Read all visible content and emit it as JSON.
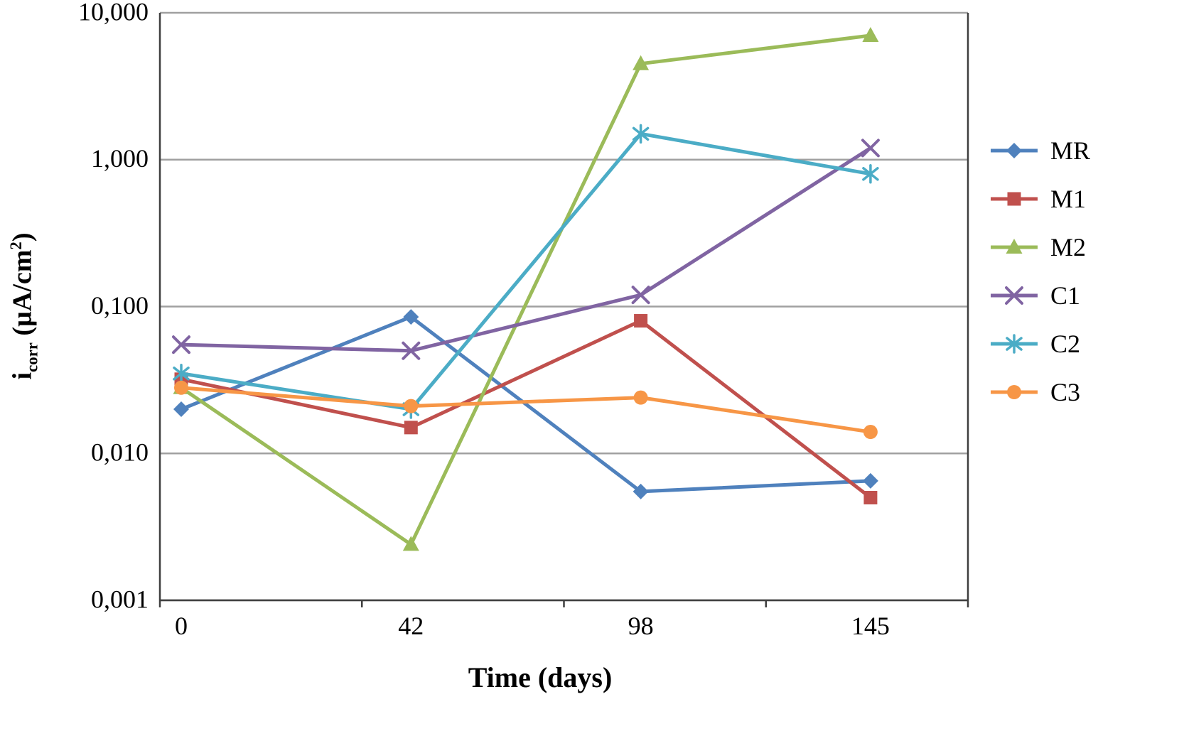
{
  "chart_data": {
    "type": "line",
    "title": "",
    "xlabel": "Time (days)",
    "ylabel": "icorr (µA/cm2)",
    "x_categories": [
      "0",
      "42",
      "98",
      "145"
    ],
    "x_values": [
      0,
      42,
      98,
      145
    ],
    "y_scale": "log",
    "ylim": [
      0.001,
      10
    ],
    "y_ticks": [
      {
        "value": 0.001,
        "label": "0,001"
      },
      {
        "value": 0.01,
        "label": "0,010"
      },
      {
        "value": 0.1,
        "label": "0,100"
      },
      {
        "value": 1,
        "label": "1,000"
      },
      {
        "value": 10,
        "label": "10,000"
      }
    ],
    "grid": "horizontal",
    "legend_position": "right",
    "series": [
      {
        "name": "MR",
        "color": "#4F81BD",
        "marker": "diamond",
        "values": [
          0.02,
          0.085,
          0.0055,
          0.0065
        ]
      },
      {
        "name": "M1",
        "color": "#C0504D",
        "marker": "square",
        "values": [
          0.032,
          0.015,
          0.08,
          0.005
        ]
      },
      {
        "name": "M2",
        "color": "#9BBB59",
        "marker": "triangle",
        "values": [
          0.028,
          0.0024,
          4.5,
          7.0
        ]
      },
      {
        "name": "C1",
        "color": "#8064A2",
        "marker": "x",
        "values": [
          0.055,
          0.05,
          0.12,
          1.2
        ]
      },
      {
        "name": "C2",
        "color": "#4BACC6",
        "marker": "asterisk",
        "values": [
          0.035,
          0.02,
          1.5,
          0.8
        ]
      },
      {
        "name": "C3",
        "color": "#F79646",
        "marker": "circle",
        "values": [
          0.028,
          0.021,
          0.024,
          0.014
        ]
      }
    ]
  },
  "labels": {
    "y_base": "i",
    "y_sub": "corr",
    "y_unit": " (µA/cm",
    "y_sup": "2",
    "y_close": ")",
    "x_title": "Time (days)"
  },
  "style": {
    "grid_color": "#a0a0a0",
    "axis_color": "#3f3f3f",
    "background": "#ffffff"
  }
}
